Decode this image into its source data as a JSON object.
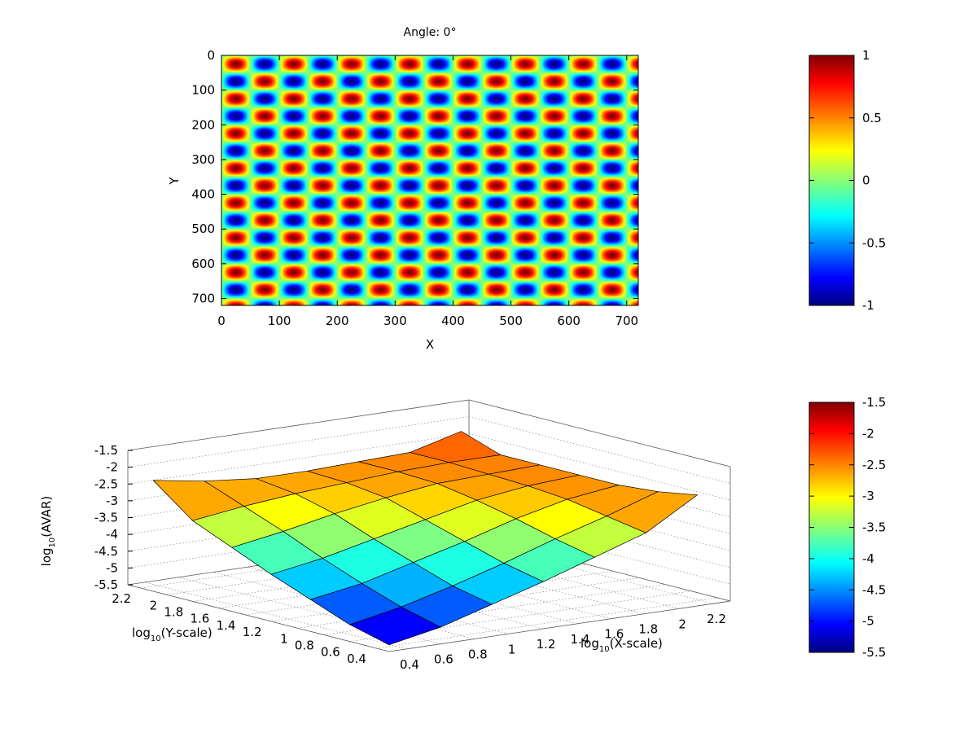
{
  "chart_data": [
    {
      "type": "heatmap",
      "title": "Angle: 0°",
      "xlabel": "X",
      "ylabel": "Y",
      "xlim": [
        0,
        720
      ],
      "ylim": [
        0,
        720
      ],
      "y_inverted": true,
      "x_ticks": [
        "0",
        "100",
        "200",
        "300",
        "400",
        "500",
        "600",
        "700"
      ],
      "y_ticks": [
        "0",
        "100",
        "200",
        "300",
        "400",
        "500",
        "600",
        "700"
      ],
      "pattern": {
        "function": "sin(2*pi*x/100)*sin(2*pi*y/100)",
        "period_x": 100,
        "period_y": 100,
        "value_range": [
          -1,
          1
        ]
      },
      "colorbar": {
        "range": [
          -1,
          1
        ],
        "ticks": [
          "-1",
          "-0.5",
          "0",
          "0.5",
          "1"
        ],
        "colormap": "jet"
      }
    },
    {
      "type": "surface3d",
      "xlabel_base": "log",
      "xlabel_sub": "10",
      "xlabel_rest": "(X-scale)",
      "ylabel_base": "log",
      "ylabel_sub": "10",
      "ylabel_rest": "(Y-scale)",
      "zlabel_base": "log",
      "zlabel_sub": "10",
      "zlabel_rest": "(AVAR)",
      "xlim": [
        0.3,
        2.3
      ],
      "ylim": [
        0.3,
        2.3
      ],
      "zlim": [
        -5.5,
        -1.5
      ],
      "x_ticks": [
        "0.4",
        "0.6",
        "0.8",
        "1",
        "1.2",
        "1.4",
        "1.6",
        "1.8",
        "2",
        "2.2"
      ],
      "y_ticks": [
        "0.4",
        "0.6",
        "0.8",
        "1",
        "1.2",
        "1.4",
        "1.6",
        "1.8",
        "2",
        "2.2"
      ],
      "z_ticks": [
        "-5.5",
        "-5",
        "-4.5",
        "-4",
        "-3.5",
        "-3",
        "-2.5",
        "-2",
        "-1.5"
      ],
      "x_grid": [
        0.301,
        0.602,
        0.903,
        1.204,
        1.505,
        1.806,
        2.107
      ],
      "y_grid": [
        0.301,
        0.602,
        0.903,
        1.204,
        1.505,
        1.806,
        2.107
      ],
      "z_values": [
        [
          -5.3,
          -5.0,
          -4.55,
          -4.1,
          -3.6,
          -3.1,
          -2.2
        ],
        [
          -5.0,
          -4.7,
          -4.3,
          -3.85,
          -3.35,
          -2.9,
          -2.45
        ],
        [
          -4.55,
          -4.3,
          -3.9,
          -3.5,
          -3.05,
          -2.75,
          -2.6
        ],
        [
          -4.1,
          -3.85,
          -3.5,
          -3.15,
          -2.8,
          -2.65,
          -2.6
        ],
        [
          -3.6,
          -3.35,
          -3.05,
          -2.8,
          -2.6,
          -2.55,
          -2.55
        ],
        [
          -3.1,
          -2.9,
          -2.7,
          -2.6,
          -2.55,
          -2.5,
          -2.5
        ],
        [
          -2.2,
          -2.4,
          -2.5,
          -2.5,
          -2.5,
          -2.5,
          -2.1
        ]
      ],
      "colorbar": {
        "range": [
          -5.5,
          -1.5
        ],
        "ticks": [
          "-5.5",
          "-5",
          "-4.5",
          "-4",
          "-3.5",
          "-3",
          "-2.5",
          "-2",
          "-1.5"
        ],
        "colormap": "jet"
      }
    }
  ]
}
